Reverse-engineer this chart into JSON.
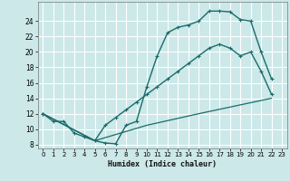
{
  "xlabel": "Humidex (Indice chaleur)",
  "xlim": [
    -0.5,
    23.5
  ],
  "ylim": [
    7.5,
    26.5
  ],
  "xticks": [
    0,
    1,
    2,
    3,
    4,
    5,
    6,
    7,
    8,
    9,
    10,
    11,
    12,
    13,
    14,
    15,
    16,
    17,
    18,
    19,
    20,
    21,
    22,
    23
  ],
  "yticks": [
    8,
    10,
    12,
    14,
    16,
    18,
    20,
    22,
    24
  ],
  "bg_color": "#cce8e8",
  "grid_color": "#ffffff",
  "line_color": "#1a6b6b",
  "series": [
    {
      "x": [
        0,
        1,
        2,
        3,
        4,
        5,
        6,
        7,
        8,
        9,
        10,
        11,
        12,
        13,
        14,
        15,
        16,
        17,
        18,
        19,
        20,
        21,
        22
      ],
      "y": [
        12,
        11,
        11,
        9.5,
        9,
        8.5,
        8.2,
        8.1,
        10.5,
        11,
        15.5,
        19.5,
        22.5,
        23.2,
        23.5,
        24.0,
        25.3,
        25.3,
        25.2,
        24.2,
        24.0,
        20.0,
        16.5
      ],
      "marker": "+",
      "lw": 1.0
    },
    {
      "x": [
        0,
        5,
        6,
        7,
        8,
        9,
        10,
        11,
        12,
        13,
        14,
        15,
        16,
        17,
        18,
        19,
        20,
        21,
        22
      ],
      "y": [
        12,
        8.5,
        10.5,
        11.5,
        12.5,
        13.5,
        14.5,
        15.5,
        16.5,
        17.5,
        18.5,
        19.5,
        20.5,
        21.0,
        20.5,
        19.5,
        20.0,
        17.5,
        14.5
      ],
      "marker": "+",
      "lw": 1.0
    },
    {
      "x": [
        0,
        5,
        10,
        15,
        22
      ],
      "y": [
        12,
        8.5,
        10.5,
        12.0,
        14.0
      ],
      "marker": null,
      "lw": 0.9
    }
  ]
}
